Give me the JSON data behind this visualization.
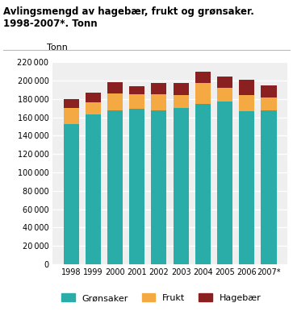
{
  "years": [
    "1998",
    "1999",
    "2000",
    "2001",
    "2002",
    "2003",
    "2004",
    "2005",
    "2006",
    "2007*"
  ],
  "gronsaker": [
    153000,
    163000,
    168000,
    169000,
    168000,
    170000,
    175000,
    177000,
    167000,
    168000
  ],
  "frukt": [
    17000,
    13000,
    18000,
    16000,
    17000,
    14000,
    22000,
    15000,
    17000,
    14000
  ],
  "hagebaer": [
    10000,
    11000,
    12000,
    9000,
    12000,
    13000,
    13000,
    12000,
    17000,
    13000
  ],
  "color_gronsaker": "#2aaca8",
  "color_frukt": "#f5a942",
  "color_hagebaer": "#8b2020",
  "title_line1": "Avlingsmengd av hagebær, frukt og grønsaker.",
  "title_line2": "1998-2007*. Tonn",
  "ylabel": "Tonn",
  "ylim": [
    0,
    220000
  ],
  "yticks": [
    0,
    20000,
    40000,
    60000,
    80000,
    100000,
    120000,
    140000,
    160000,
    180000,
    200000,
    220000
  ],
  "legend_labels": [
    "Grønsaker",
    "Frukt",
    "Hagebær"
  ],
  "background_color": "#ffffff",
  "plot_bg_color": "#efefef",
  "grid_color": "#ffffff"
}
